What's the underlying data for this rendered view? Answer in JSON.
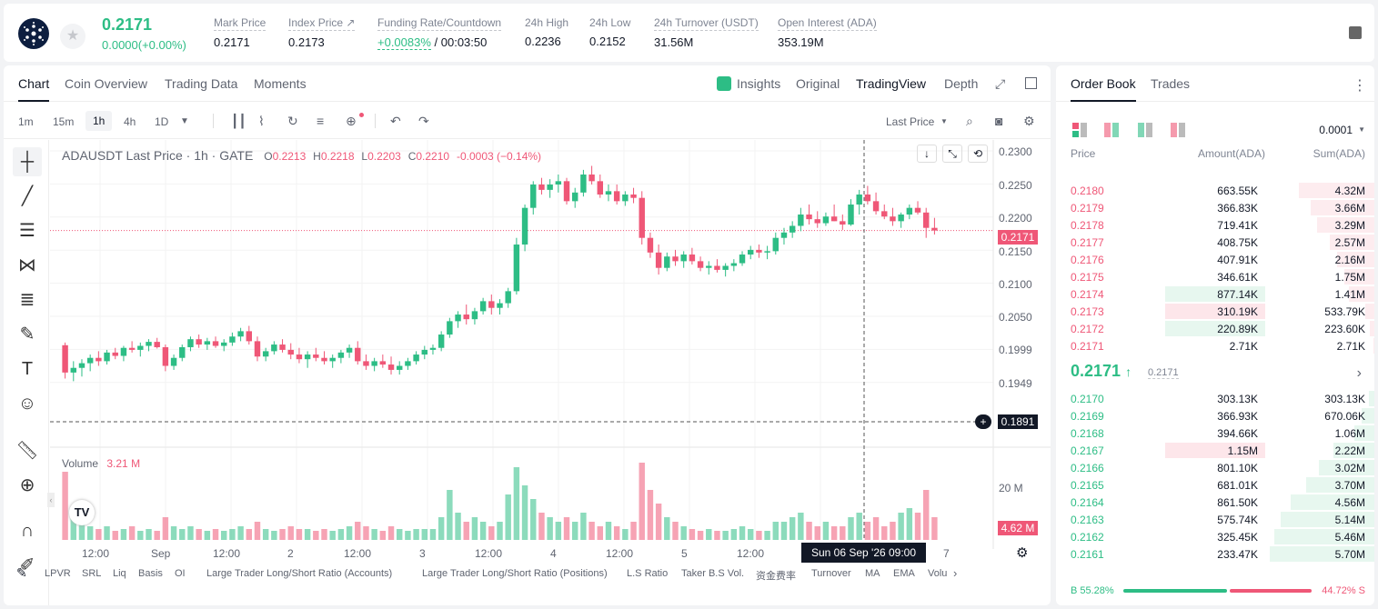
{
  "header": {
    "price": "0.2171",
    "change": "0.0000(+0.00%)",
    "stats": [
      {
        "label": "Mark Price",
        "value": "0.2171"
      },
      {
        "label": "Index Price ↗",
        "value": "0.2173"
      },
      {
        "label": "Funding Rate/Countdown",
        "value_green": "+0.0083%",
        "value": " / 00:03:50"
      },
      {
        "label": "24h High",
        "value": "0.2236"
      },
      {
        "label": "24h Low",
        "value": "0.2152"
      },
      {
        "label": "24h Turnover (USDT)",
        "value": "31.56M"
      },
      {
        "label": "Open Interest (ADA)",
        "value": "353.19M"
      }
    ]
  },
  "chart_tabs": [
    "Chart",
    "Coin Overview",
    "Trading Data",
    "Moments"
  ],
  "view_tabs": [
    "Insights",
    "Original",
    "TradingView",
    "Depth"
  ],
  "timeframes": [
    "1m",
    "15m",
    "1h",
    "4h",
    "1D"
  ],
  "price_type": "Last Price",
  "legend": {
    "name": "ADAUSDT Last Price · 1h · GATE",
    "o": "0.2213",
    "h": "0.2218",
    "l": "0.2203",
    "c": "0.2210",
    "chg": "-0.0003 (−0.14%)"
  },
  "volume_legend": {
    "label": "Volume",
    "value": "3.21 M"
  },
  "y_ticks": [
    "0.2300",
    "0.2250",
    "0.2200",
    "0.2150",
    "0.2100",
    "0.2050",
    "0.1999",
    "0.1949"
  ],
  "last_price_tag": "0.2171",
  "crosshair_price": "0.1891",
  "vol_tick": "20 M",
  "vol_tag": "4.62 M",
  "x_labels": [
    "12:00",
    "Sep",
    "12:00",
    "2",
    "12:00",
    "3",
    "12:00",
    "4",
    "12:00",
    "5",
    "12:00",
    "7"
  ],
  "crosshair_time": "Sun 06 Sep '26   09:00",
  "bottom_indicators": [
    "LPVR",
    "SRL",
    "Liq",
    "Basis",
    "OI",
    "Large Trader Long/Short Ratio (Accounts)",
    "Large Trader Long/Short Ratio (Positions)",
    "L.S Ratio",
    "Taker B.S Vol.",
    "资金费率",
    "Turnover",
    "MA",
    "EMA",
    "Volu"
  ],
  "orderbook": {
    "tabs": [
      "Order Book",
      "Trades"
    ],
    "precision": "0.0001",
    "headers": [
      "Price",
      "Amount(ADA)",
      "Sum(ADA)"
    ],
    "asks": [
      {
        "price": "0.2180",
        "amount": "663.55K",
        "sum": "4.32M",
        "depth": 0.72,
        "big": 0
      },
      {
        "price": "0.2179",
        "amount": "366.83K",
        "sum": "3.66M",
        "depth": 0.61,
        "big": 0
      },
      {
        "price": "0.2178",
        "amount": "719.41K",
        "sum": "3.29M",
        "depth": 0.55,
        "big": 0
      },
      {
        "price": "0.2177",
        "amount": "408.75K",
        "sum": "2.57M",
        "depth": 0.43,
        "big": 0
      },
      {
        "price": "0.2176",
        "amount": "407.91K",
        "sum": "2.16M",
        "depth": 0.36,
        "big": 0
      },
      {
        "price": "0.2175",
        "amount": "346.61K",
        "sum": "1.75M",
        "depth": 0.29,
        "big": 0
      },
      {
        "price": "0.2174",
        "amount": "877.14K",
        "sum": "1.41M",
        "depth": 0.24,
        "big": 0.45
      },
      {
        "price": "0.2173",
        "amount": "310.19K",
        "sum": "533.79K",
        "depth": 0.09,
        "big": 0.42
      },
      {
        "price": "0.2172",
        "amount": "220.89K",
        "sum": "223.60K",
        "depth": 0.04,
        "big": 0.42
      },
      {
        "price": "0.2171",
        "amount": "2.71K",
        "sum": "2.71K",
        "depth": 0.01,
        "big": 0
      }
    ],
    "mid_price": "0.2171",
    "mid_mark": "0.2171",
    "bids": [
      {
        "price": "0.2170",
        "amount": "303.13K",
        "sum": "303.13K",
        "depth": 0.05,
        "big": 0
      },
      {
        "price": "0.2169",
        "amount": "366.93K",
        "sum": "670.06K",
        "depth": 0.12,
        "big": 0
      },
      {
        "price": "0.2168",
        "amount": "394.66K",
        "sum": "1.06M",
        "depth": 0.19,
        "big": 0
      },
      {
        "price": "0.2167",
        "amount": "1.15M",
        "sum": "2.22M",
        "depth": 0.39,
        "big": 0.42
      },
      {
        "price": "0.2166",
        "amount": "801.10K",
        "sum": "3.02M",
        "depth": 0.53,
        "big": 0
      },
      {
        "price": "0.2165",
        "amount": "681.01K",
        "sum": "3.70M",
        "depth": 0.65,
        "big": 0
      },
      {
        "price": "0.2164",
        "amount": "861.50K",
        "sum": "4.56M",
        "depth": 0.8,
        "big": 0
      },
      {
        "price": "0.2163",
        "amount": "575.74K",
        "sum": "5.14M",
        "depth": 0.9,
        "big": 0
      },
      {
        "price": "0.2162",
        "amount": "325.45K",
        "sum": "5.46M",
        "depth": 0.96,
        "big": 0
      },
      {
        "price": "0.2161",
        "amount": "233.47K",
        "sum": "5.70M",
        "depth": 1.0,
        "big": 0
      }
    ],
    "buy_ratio": "B 55.28%",
    "sell_ratio": "44.72% S"
  },
  "chart_data": {
    "type": "candlestick",
    "ylim": [
      0.1891,
      0.23
    ],
    "candles_ohlc": [
      [
        0.1999,
        0.2003,
        0.1949,
        0.1958
      ],
      [
        0.1958,
        0.1975,
        0.1945,
        0.1965
      ],
      [
        0.1965,
        0.1978,
        0.1952,
        0.1972
      ],
      [
        0.1972,
        0.1985,
        0.196,
        0.198
      ],
      [
        0.198,
        0.199,
        0.1968,
        0.1975
      ],
      [
        0.1975,
        0.1992,
        0.197,
        0.1988
      ],
      [
        0.1988,
        0.1995,
        0.1978,
        0.1983
      ],
      [
        0.1983,
        0.1998,
        0.1975,
        0.1995
      ],
      [
        0.1995,
        0.2005,
        0.1988,
        0.1992
      ],
      [
        0.1992,
        0.2003,
        0.1982,
        0.1998
      ],
      [
        0.1998,
        0.2008,
        0.199,
        0.2004
      ],
      [
        0.2004,
        0.201,
        0.1994,
        0.1996
      ],
      [
        0.1996,
        0.2,
        0.196,
        0.1968
      ],
      [
        0.1968,
        0.1985,
        0.1962,
        0.198
      ],
      [
        0.198,
        0.2,
        0.1975,
        0.1996
      ],
      [
        0.1996,
        0.2012,
        0.199,
        0.2008
      ],
      [
        0.2008,
        0.2015,
        0.1995,
        0.2
      ],
      [
        0.2,
        0.201,
        0.1992,
        0.2005
      ],
      [
        0.2005,
        0.2012,
        0.1995,
        0.1998
      ],
      [
        0.1998,
        0.2008,
        0.199,
        0.2003
      ],
      [
        0.2003,
        0.2018,
        0.1998,
        0.2012
      ],
      [
        0.2012,
        0.2025,
        0.2005,
        0.202
      ],
      [
        0.202,
        0.2028,
        0.2,
        0.2005
      ],
      [
        0.2005,
        0.2012,
        0.1975,
        0.1982
      ],
      [
        0.1982,
        0.1995,
        0.1975,
        0.199
      ],
      [
        0.199,
        0.2005,
        0.1985,
        0.2
      ],
      [
        0.2,
        0.2008,
        0.1988,
        0.1992
      ],
      [
        0.1992,
        0.2002,
        0.1978,
        0.1985
      ],
      [
        0.1985,
        0.1995,
        0.1972,
        0.1978
      ],
      [
        0.1978,
        0.199,
        0.1965,
        0.1985
      ],
      [
        0.1985,
        0.1995,
        0.1975,
        0.198
      ],
      [
        0.198,
        0.199,
        0.197,
        0.1975
      ],
      [
        0.1975,
        0.1985,
        0.1965,
        0.198
      ],
      [
        0.198,
        0.1992,
        0.1972,
        0.1988
      ],
      [
        0.1988,
        0.2,
        0.198,
        0.1995
      ],
      [
        0.1995,
        0.2005,
        0.197,
        0.1975
      ],
      [
        0.1975,
        0.1985,
        0.1962,
        0.1968
      ],
      [
        0.1968,
        0.198,
        0.196,
        0.1975
      ],
      [
        0.1975,
        0.1985,
        0.1965,
        0.197
      ],
      [
        0.197,
        0.1982,
        0.1955,
        0.1962
      ],
      [
        0.1962,
        0.1975,
        0.1955,
        0.1968
      ],
      [
        0.1968,
        0.198,
        0.1962,
        0.1975
      ],
      [
        0.1975,
        0.199,
        0.197,
        0.1985
      ],
      [
        0.1985,
        0.1998,
        0.1978,
        0.1992
      ],
      [
        0.1992,
        0.2,
        0.1985,
        0.1995
      ],
      [
        0.1995,
        0.202,
        0.199,
        0.2015
      ],
      [
        0.2015,
        0.204,
        0.201,
        0.2035
      ],
      [
        0.2035,
        0.205,
        0.2025,
        0.2045
      ],
      [
        0.2045,
        0.206,
        0.203,
        0.2038
      ],
      [
        0.2038,
        0.2055,
        0.203,
        0.205
      ],
      [
        0.205,
        0.207,
        0.2045,
        0.2065
      ],
      [
        0.2065,
        0.2075,
        0.2045,
        0.2055
      ],
      [
        0.2055,
        0.2068,
        0.2045,
        0.2062
      ],
      [
        0.2062,
        0.2085,
        0.2055,
        0.208
      ],
      [
        0.208,
        0.216,
        0.2075,
        0.215
      ],
      [
        0.215,
        0.221,
        0.214,
        0.2205
      ],
      [
        0.2205,
        0.2245,
        0.2195,
        0.224
      ],
      [
        0.224,
        0.225,
        0.2225,
        0.2232
      ],
      [
        0.2232,
        0.2248,
        0.222,
        0.224
      ],
      [
        0.224,
        0.2255,
        0.2228,
        0.2245
      ],
      [
        0.2245,
        0.225,
        0.221,
        0.2215
      ],
      [
        0.2215,
        0.2235,
        0.2205,
        0.2228
      ],
      [
        0.2228,
        0.2262,
        0.2222,
        0.2255
      ],
      [
        0.2255,
        0.2268,
        0.224,
        0.2245
      ],
      [
        0.2245,
        0.2255,
        0.222,
        0.2225
      ],
      [
        0.2225,
        0.224,
        0.2215,
        0.223
      ],
      [
        0.223,
        0.224,
        0.221,
        0.2215
      ],
      [
        0.2215,
        0.223,
        0.2208,
        0.2225
      ],
      [
        0.2225,
        0.2235,
        0.2212,
        0.222
      ],
      [
        0.222,
        0.223,
        0.215,
        0.216
      ],
      [
        0.216,
        0.2168,
        0.213,
        0.2138
      ],
      [
        0.2138,
        0.215,
        0.2105,
        0.2115
      ],
      [
        0.2115,
        0.2138,
        0.211,
        0.2132
      ],
      [
        0.2132,
        0.2142,
        0.2118,
        0.2125
      ],
      [
        0.2125,
        0.214,
        0.2115,
        0.2135
      ],
      [
        0.2135,
        0.2145,
        0.212,
        0.2125
      ],
      [
        0.2125,
        0.2132,
        0.211,
        0.2115
      ],
      [
        0.2115,
        0.2125,
        0.2105,
        0.2118
      ],
      [
        0.2118,
        0.2128,
        0.2108,
        0.2112
      ],
      [
        0.2112,
        0.2122,
        0.2102,
        0.2118
      ],
      [
        0.2118,
        0.2128,
        0.211,
        0.2122
      ],
      [
        0.2122,
        0.214,
        0.2118,
        0.2135
      ],
      [
        0.2135,
        0.2148,
        0.2128,
        0.2142
      ],
      [
        0.2142,
        0.215,
        0.213,
        0.2138
      ],
      [
        0.2138,
        0.2148,
        0.2128,
        0.214
      ],
      [
        0.214,
        0.2168,
        0.2135,
        0.216
      ],
      [
        0.216,
        0.2175,
        0.215,
        0.2168
      ],
      [
        0.2168,
        0.2185,
        0.216,
        0.2178
      ],
      [
        0.2178,
        0.2205,
        0.217,
        0.2195
      ],
      [
        0.2195,
        0.221,
        0.218,
        0.2188
      ],
      [
        0.2188,
        0.22,
        0.2175,
        0.2182
      ],
      [
        0.2182,
        0.2198,
        0.2178,
        0.2192
      ],
      [
        0.2192,
        0.221,
        0.2185,
        0.2185
      ],
      [
        0.2185,
        0.2195,
        0.2172,
        0.218
      ],
      [
        0.218,
        0.2218,
        0.2178,
        0.221
      ],
      [
        0.221,
        0.2232,
        0.2195,
        0.2225
      ],
      [
        0.2225,
        0.2238,
        0.221,
        0.2215
      ],
      [
        0.2215,
        0.2228,
        0.2195,
        0.22
      ],
      [
        0.22,
        0.221,
        0.2188,
        0.2192
      ],
      [
        0.2192,
        0.2205,
        0.2178,
        0.2185
      ],
      [
        0.2185,
        0.2198,
        0.2175,
        0.2195
      ],
      [
        0.2195,
        0.221,
        0.2188,
        0.2205
      ],
      [
        0.2205,
        0.2215,
        0.2195,
        0.2198
      ],
      [
        0.2198,
        0.2205,
        0.216,
        0.2175
      ],
      [
        0.2175,
        0.219,
        0.2165,
        0.2171
      ]
    ],
    "volume_relative": [
      0.75,
      0.3,
      0.25,
      0.15,
      0.12,
      0.15,
      0.1,
      0.12,
      0.15,
      0.1,
      0.12,
      0.1,
      0.25,
      0.15,
      0.12,
      0.15,
      0.12,
      0.1,
      0.12,
      0.1,
      0.12,
      0.15,
      0.12,
      0.2,
      0.12,
      0.1,
      0.12,
      0.15,
      0.12,
      0.12,
      0.1,
      0.12,
      0.1,
      0.12,
      0.15,
      0.2,
      0.15,
      0.12,
      0.1,
      0.15,
      0.12,
      0.1,
      0.12,
      0.12,
      0.12,
      0.25,
      0.55,
      0.3,
      0.2,
      0.25,
      0.2,
      0.15,
      0.2,
      0.5,
      0.8,
      0.6,
      0.45,
      0.3,
      0.25,
      0.2,
      0.25,
      0.2,
      0.3,
      0.2,
      0.15,
      0.2,
      0.15,
      0.12,
      0.2,
      0.85,
      0.55,
      0.4,
      0.25,
      0.2,
      0.15,
      0.12,
      0.1,
      0.12,
      0.1,
      0.1,
      0.12,
      0.15,
      0.12,
      0.1,
      0.1,
      0.2,
      0.2,
      0.25,
      0.3,
      0.2,
      0.15,
      0.2,
      0.15,
      0.15,
      0.25,
      0.3,
      0.2,
      0.25,
      0.15,
      0.2,
      0.3,
      0.35,
      0.3,
      0.55,
      0.25
    ],
    "volume_unit_tick": "20 M",
    "xlabel": "",
    "ylabel": ""
  },
  "colors": {
    "up": "#2dbd85",
    "down": "#ef5777",
    "text": "#121826"
  }
}
